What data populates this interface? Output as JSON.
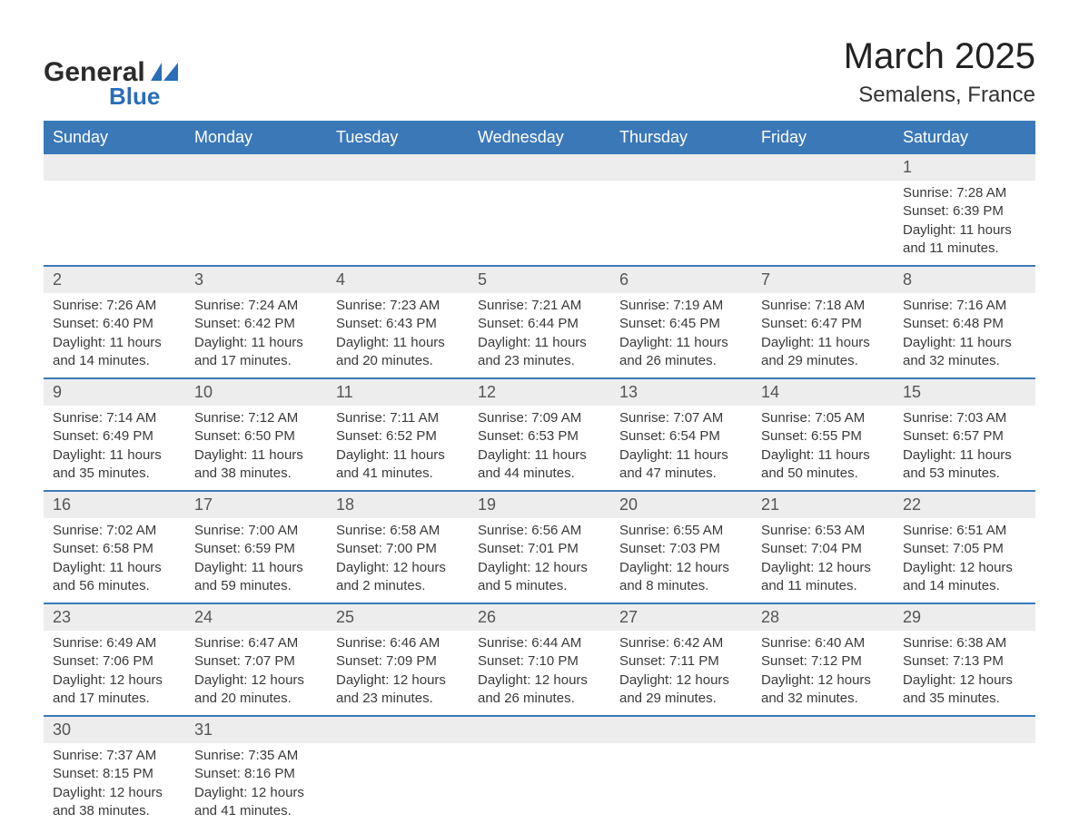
{
  "brand": {
    "word1": "General",
    "word2": "Blue",
    "text_color": "#2b2b2b",
    "accent_color": "#2a6db8"
  },
  "header": {
    "month_title": "March 2025",
    "location": "Semalens, France",
    "title_fontsize": 40,
    "location_fontsize": 24
  },
  "calendar": {
    "type": "table",
    "header_bg": "#3b78b8",
    "header_text_color": "#ffffff",
    "row_divider_color": "#3b78b8",
    "daynum_bg": "#ededed",
    "body_text_color": "#3a3a3a",
    "body_fontsize": 15,
    "columns": [
      "Sunday",
      "Monday",
      "Tuesday",
      "Wednesday",
      "Thursday",
      "Friday",
      "Saturday"
    ],
    "weeks": [
      [
        null,
        null,
        null,
        null,
        null,
        null,
        {
          "n": "1",
          "sunrise": "Sunrise: 7:28 AM",
          "sunset": "Sunset: 6:39 PM",
          "d1": "Daylight: 11 hours",
          "d2": "and 11 minutes."
        }
      ],
      [
        {
          "n": "2",
          "sunrise": "Sunrise: 7:26 AM",
          "sunset": "Sunset: 6:40 PM",
          "d1": "Daylight: 11 hours",
          "d2": "and 14 minutes."
        },
        {
          "n": "3",
          "sunrise": "Sunrise: 7:24 AM",
          "sunset": "Sunset: 6:42 PM",
          "d1": "Daylight: 11 hours",
          "d2": "and 17 minutes."
        },
        {
          "n": "4",
          "sunrise": "Sunrise: 7:23 AM",
          "sunset": "Sunset: 6:43 PM",
          "d1": "Daylight: 11 hours",
          "d2": "and 20 minutes."
        },
        {
          "n": "5",
          "sunrise": "Sunrise: 7:21 AM",
          "sunset": "Sunset: 6:44 PM",
          "d1": "Daylight: 11 hours",
          "d2": "and 23 minutes."
        },
        {
          "n": "6",
          "sunrise": "Sunrise: 7:19 AM",
          "sunset": "Sunset: 6:45 PM",
          "d1": "Daylight: 11 hours",
          "d2": "and 26 minutes."
        },
        {
          "n": "7",
          "sunrise": "Sunrise: 7:18 AM",
          "sunset": "Sunset: 6:47 PM",
          "d1": "Daylight: 11 hours",
          "d2": "and 29 minutes."
        },
        {
          "n": "8",
          "sunrise": "Sunrise: 7:16 AM",
          "sunset": "Sunset: 6:48 PM",
          "d1": "Daylight: 11 hours",
          "d2": "and 32 minutes."
        }
      ],
      [
        {
          "n": "9",
          "sunrise": "Sunrise: 7:14 AM",
          "sunset": "Sunset: 6:49 PM",
          "d1": "Daylight: 11 hours",
          "d2": "and 35 minutes."
        },
        {
          "n": "10",
          "sunrise": "Sunrise: 7:12 AM",
          "sunset": "Sunset: 6:50 PM",
          "d1": "Daylight: 11 hours",
          "d2": "and 38 minutes."
        },
        {
          "n": "11",
          "sunrise": "Sunrise: 7:11 AM",
          "sunset": "Sunset: 6:52 PM",
          "d1": "Daylight: 11 hours",
          "d2": "and 41 minutes."
        },
        {
          "n": "12",
          "sunrise": "Sunrise: 7:09 AM",
          "sunset": "Sunset: 6:53 PM",
          "d1": "Daylight: 11 hours",
          "d2": "and 44 minutes."
        },
        {
          "n": "13",
          "sunrise": "Sunrise: 7:07 AM",
          "sunset": "Sunset: 6:54 PM",
          "d1": "Daylight: 11 hours",
          "d2": "and 47 minutes."
        },
        {
          "n": "14",
          "sunrise": "Sunrise: 7:05 AM",
          "sunset": "Sunset: 6:55 PM",
          "d1": "Daylight: 11 hours",
          "d2": "and 50 minutes."
        },
        {
          "n": "15",
          "sunrise": "Sunrise: 7:03 AM",
          "sunset": "Sunset: 6:57 PM",
          "d1": "Daylight: 11 hours",
          "d2": "and 53 minutes."
        }
      ],
      [
        {
          "n": "16",
          "sunrise": "Sunrise: 7:02 AM",
          "sunset": "Sunset: 6:58 PM",
          "d1": "Daylight: 11 hours",
          "d2": "and 56 minutes."
        },
        {
          "n": "17",
          "sunrise": "Sunrise: 7:00 AM",
          "sunset": "Sunset: 6:59 PM",
          "d1": "Daylight: 11 hours",
          "d2": "and 59 minutes."
        },
        {
          "n": "18",
          "sunrise": "Sunrise: 6:58 AM",
          "sunset": "Sunset: 7:00 PM",
          "d1": "Daylight: 12 hours",
          "d2": "and 2 minutes."
        },
        {
          "n": "19",
          "sunrise": "Sunrise: 6:56 AM",
          "sunset": "Sunset: 7:01 PM",
          "d1": "Daylight: 12 hours",
          "d2": "and 5 minutes."
        },
        {
          "n": "20",
          "sunrise": "Sunrise: 6:55 AM",
          "sunset": "Sunset: 7:03 PM",
          "d1": "Daylight: 12 hours",
          "d2": "and 8 minutes."
        },
        {
          "n": "21",
          "sunrise": "Sunrise: 6:53 AM",
          "sunset": "Sunset: 7:04 PM",
          "d1": "Daylight: 12 hours",
          "d2": "and 11 minutes."
        },
        {
          "n": "22",
          "sunrise": "Sunrise: 6:51 AM",
          "sunset": "Sunset: 7:05 PM",
          "d1": "Daylight: 12 hours",
          "d2": "and 14 minutes."
        }
      ],
      [
        {
          "n": "23",
          "sunrise": "Sunrise: 6:49 AM",
          "sunset": "Sunset: 7:06 PM",
          "d1": "Daylight: 12 hours",
          "d2": "and 17 minutes."
        },
        {
          "n": "24",
          "sunrise": "Sunrise: 6:47 AM",
          "sunset": "Sunset: 7:07 PM",
          "d1": "Daylight: 12 hours",
          "d2": "and 20 minutes."
        },
        {
          "n": "25",
          "sunrise": "Sunrise: 6:46 AM",
          "sunset": "Sunset: 7:09 PM",
          "d1": "Daylight: 12 hours",
          "d2": "and 23 minutes."
        },
        {
          "n": "26",
          "sunrise": "Sunrise: 6:44 AM",
          "sunset": "Sunset: 7:10 PM",
          "d1": "Daylight: 12 hours",
          "d2": "and 26 minutes."
        },
        {
          "n": "27",
          "sunrise": "Sunrise: 6:42 AM",
          "sunset": "Sunset: 7:11 PM",
          "d1": "Daylight: 12 hours",
          "d2": "and 29 minutes."
        },
        {
          "n": "28",
          "sunrise": "Sunrise: 6:40 AM",
          "sunset": "Sunset: 7:12 PM",
          "d1": "Daylight: 12 hours",
          "d2": "and 32 minutes."
        },
        {
          "n": "29",
          "sunrise": "Sunrise: 6:38 AM",
          "sunset": "Sunset: 7:13 PM",
          "d1": "Daylight: 12 hours",
          "d2": "and 35 minutes."
        }
      ],
      [
        {
          "n": "30",
          "sunrise": "Sunrise: 7:37 AM",
          "sunset": "Sunset: 8:15 PM",
          "d1": "Daylight: 12 hours",
          "d2": "and 38 minutes."
        },
        {
          "n": "31",
          "sunrise": "Sunrise: 7:35 AM",
          "sunset": "Sunset: 8:16 PM",
          "d1": "Daylight: 12 hours",
          "d2": "and 41 minutes."
        },
        null,
        null,
        null,
        null,
        null
      ]
    ]
  }
}
